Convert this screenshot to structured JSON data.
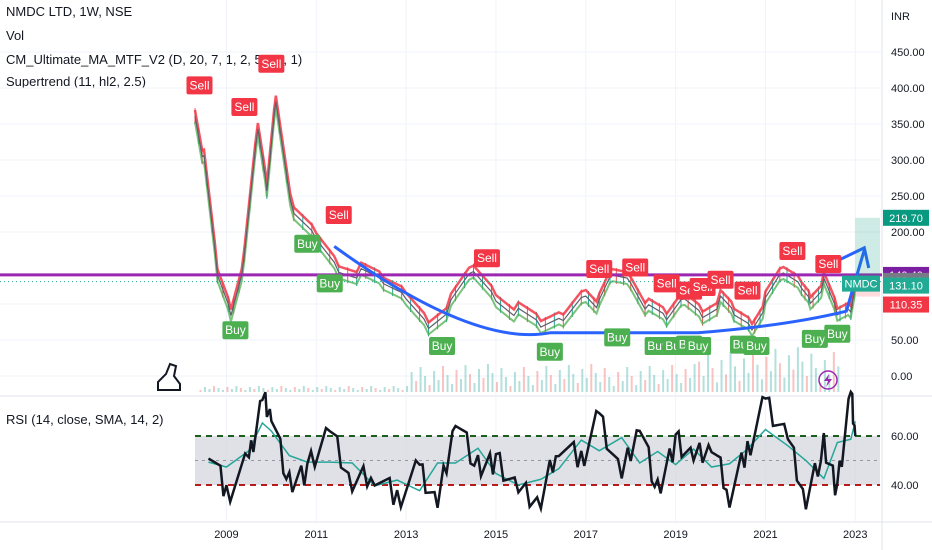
{
  "header": {
    "symbol_line": "NMDC LTD, 1W, NSE",
    "vol_label": "Vol",
    "indicator_ma": "CM_Ultimate_MA_MTF_V2 (D, 20, 7, 1, 2, 50, 7, 1)",
    "indicator_supertrend": "Supertrend (11, hl2, 2.5)",
    "rsi_label": "RSI (14, close, SMA, 14, 2)"
  },
  "price_axis": {
    "currency": "INR",
    "ticks": [
      "450.00",
      "400.00",
      "350.00",
      "300.00",
      "250.00",
      "200.00",
      "100.00",
      "50.00",
      "0.00"
    ]
  },
  "price_tags": [
    {
      "text": "219.70",
      "color": "#089981"
    },
    {
      "text": "140.40",
      "color": "#7b1fa2"
    },
    {
      "text": "132.10",
      "color": "#787b86"
    },
    {
      "text": "131.10",
      "color": "#22ab94"
    },
    {
      "text": "110.35",
      "color": "#f23645"
    }
  ],
  "symbol_tag": {
    "text": "NMDC",
    "color": "#22ab94"
  },
  "rsi_axis": {
    "ticks": [
      "60.00",
      "40.00"
    ]
  },
  "time_axis": {
    "ticks": [
      "2009",
      "2011",
      "2013",
      "2015",
      "2017",
      "2019",
      "2021",
      "2023"
    ]
  },
  "signals": {
    "sell": "Sell",
    "buy": "Buy"
  },
  "colors": {
    "sell_signal": "#f23645",
    "buy_signal": "#4caf50",
    "resistance_line": "#9c27b0",
    "cup_curve": "#2962ff",
    "candle_up": "#26a69a",
    "candle_down": "#ef5350",
    "rsi_line": "#131722",
    "rsi_ma": "#26a69a"
  },
  "chart_data": [
    {
      "type": "line",
      "title": "NMDC LTD, 1W, NSE",
      "ylabel": "INR",
      "x": [
        2008.3,
        2008.5,
        2008.8,
        2009.1,
        2009.4,
        2009.7,
        2009.9,
        2010.1,
        2010.5,
        2011.0,
        2011.5,
        2012.0,
        2012.5,
        2013.0,
        2013.5,
        2014.0,
        2014.5,
        2015.0,
        2015.5,
        2016.0,
        2016.5,
        2017.0,
        2017.3,
        2017.6,
        2018.0,
        2018.4,
        2018.8,
        2019.2,
        2019.6,
        2020.0,
        2020.3,
        2020.7,
        2021.0,
        2021.4,
        2021.8,
        2022.0,
        2022.3,
        2022.6,
        2022.9,
        2023.0
      ],
      "y": [
        370,
        300,
        140,
        90,
        160,
        340,
        260,
        390,
        220,
        190,
        150,
        140,
        125,
        110,
        75,
        100,
        145,
        110,
        85,
        65,
        80,
        120,
        100,
        140,
        135,
        90,
        75,
        110,
        90,
        105,
        85,
        70,
        100,
        140,
        125,
        110,
        130,
        85,
        95,
        131.1
      ],
      "ylim": [
        0,
        450
      ],
      "annotations": {
        "resistance": 140.4,
        "current": 131.1,
        "target": 219.7,
        "stop": 110.35,
        "sell_signals": [
          [
            2008.4,
            380
          ],
          [
            2009.4,
            350
          ],
          [
            2010.0,
            410
          ],
          [
            2011.5,
            200
          ],
          [
            2014.8,
            140
          ],
          [
            2017.3,
            125
          ],
          [
            2018.1,
            127
          ],
          [
            2018.8,
            105
          ],
          [
            2019.3,
            95
          ],
          [
            2019.6,
            100
          ],
          [
            2020.0,
            110
          ],
          [
            2020.6,
            95
          ],
          [
            2021.6,
            150
          ],
          [
            2022.4,
            132
          ]
        ],
        "buy_signals": [
          [
            2009.2,
            90
          ],
          [
            2010.8,
            210
          ],
          [
            2011.3,
            155
          ],
          [
            2013.8,
            68
          ],
          [
            2016.2,
            60
          ],
          [
            2017.7,
            80
          ],
          [
            2018.6,
            68
          ],
          [
            2019.0,
            68
          ],
          [
            2019.3,
            70
          ],
          [
            2019.5,
            68
          ],
          [
            2020.5,
            70
          ],
          [
            2020.8,
            68
          ],
          [
            2022.1,
            78
          ],
          [
            2022.6,
            85
          ]
        ]
      }
    },
    {
      "type": "line",
      "title": "RSI (14, close, SMA, 14, 2)",
      "ylim": [
        20,
        80
      ],
      "bands": [
        40,
        60
      ],
      "series": [
        {
          "x": [
            2008.6,
            2009.0,
            2009.5,
            2009.8,
            2010.0,
            2010.4,
            2010.8,
            2011.3,
            2011.8,
            2012.3,
            2012.8,
            2013.3,
            2013.7,
            2014.1,
            2014.6,
            2015.0,
            2015.5,
            2016.0,
            2016.4,
            2016.9,
            2017.3,
            2017.8,
            2018.2,
            2018.6,
            2019.0,
            2019.4,
            2019.8,
            2020.2,
            2020.6,
            2021.0,
            2021.5,
            2021.9,
            2022.3,
            2022.6,
            2022.9,
            2023.0
          ],
          "values": [
            56,
            36,
            50,
            76,
            70,
            40,
            46,
            62,
            40,
            45,
            34,
            47,
            32,
            68,
            47,
            50,
            37,
            33,
            57,
            50,
            68,
            44,
            66,
            37,
            58,
            50,
            56,
            36,
            54,
            74,
            60,
            34,
            56,
            38,
            78,
            60
          ]
        }
      ]
    }
  ]
}
